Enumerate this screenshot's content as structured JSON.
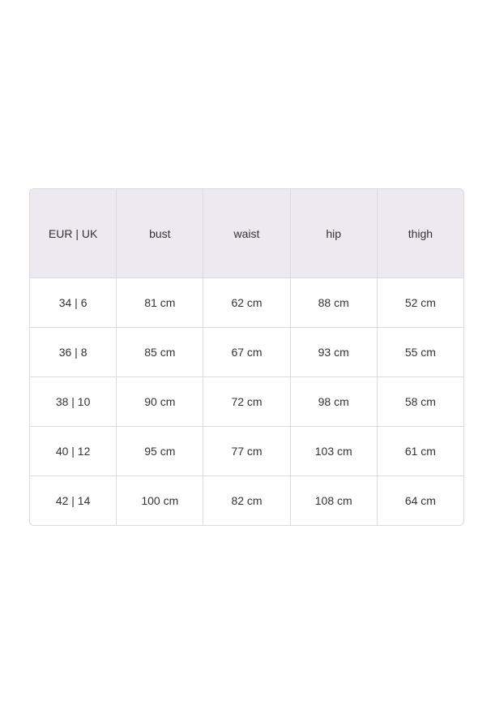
{
  "table": {
    "headers": [
      "EUR | UK",
      "bust",
      "waist",
      "hip",
      "thigh"
    ],
    "rows": [
      [
        "34 | 6",
        "81 cm",
        "62 cm",
        "88 cm",
        "52 cm"
      ],
      [
        "36 | 8",
        "85 cm",
        "67 cm",
        "93 cm",
        "55 cm"
      ],
      [
        "38 | 10",
        "90 cm",
        "72 cm",
        "98 cm",
        "58 cm"
      ],
      [
        "40 | 12",
        "95 cm",
        "77 cm",
        "103 cm",
        "61 cm"
      ],
      [
        "42 | 14",
        "100 cm",
        "82 cm",
        "108 cm",
        "64 cm"
      ]
    ],
    "header_bg": "#ece9f1"
  }
}
